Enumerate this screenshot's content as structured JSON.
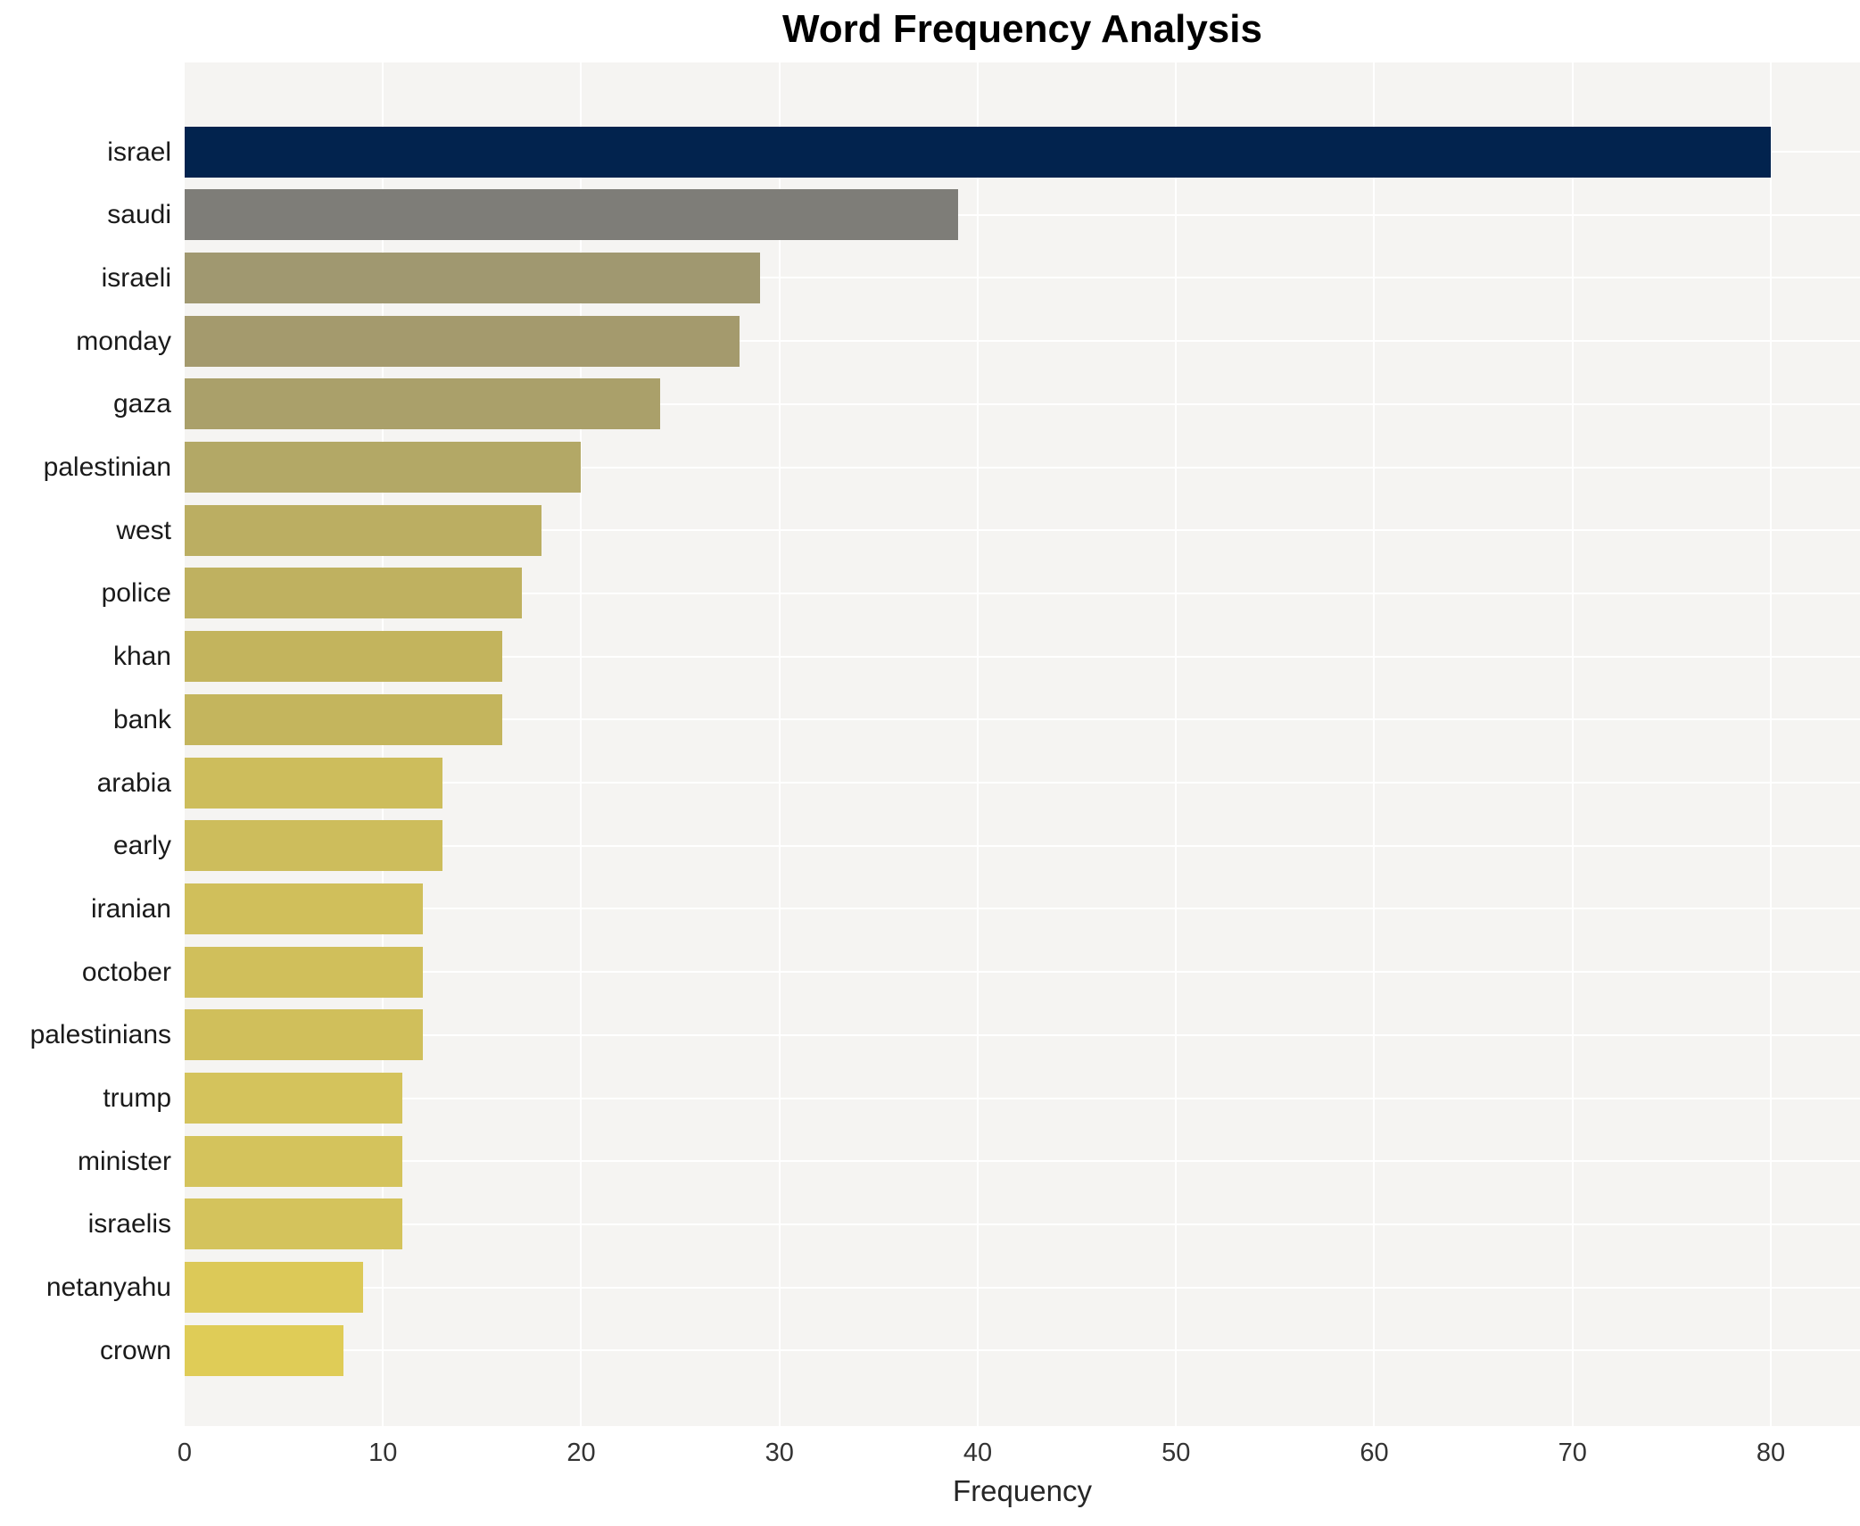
{
  "chart_data": {
    "type": "bar",
    "orientation": "horizontal",
    "title": "Word Frequency Analysis",
    "xlabel": "Frequency",
    "ylabel": "",
    "legend": "none",
    "grid": "white gridlines on light-gray plot background, x every 10 units, y at category centers",
    "categories": [
      "israel",
      "saudi",
      "israeli",
      "monday",
      "gaza",
      "palestinian",
      "west",
      "police",
      "khan",
      "bank",
      "arabia",
      "early",
      "iranian",
      "october",
      "palestinians",
      "trump",
      "minister",
      "israelis",
      "netanyahu",
      "crown"
    ],
    "values": [
      80,
      39,
      29,
      28,
      24,
      20,
      18,
      17,
      16,
      16,
      13,
      13,
      12,
      12,
      12,
      11,
      11,
      11,
      9,
      8
    ],
    "bar_colors": [
      "#02234e",
      "#7e7d78",
      "#a09870",
      "#a49a6d",
      "#aaa06a",
      "#b3a866",
      "#bbae62",
      "#bfb160",
      "#c3b45d",
      "#c4b55d",
      "#cdbd5c",
      "#cdbd5c",
      "#d0bf5b",
      "#d0bf5b",
      "#d0bf5b",
      "#d4c35c",
      "#d4c35c",
      "#d4c35c",
      "#dcc958",
      "#dfcc57"
    ],
    "xlim": [
      0,
      84.5
    ],
    "xticks": [
      0,
      10,
      20,
      30,
      40,
      50,
      60,
      70,
      80
    ],
    "colors": {
      "plot_bg": "#f5f4f2",
      "figure_bg": "#ffffff",
      "gridline": "#ffffff",
      "title_text": "#000000",
      "tick_text": "#333333"
    }
  }
}
